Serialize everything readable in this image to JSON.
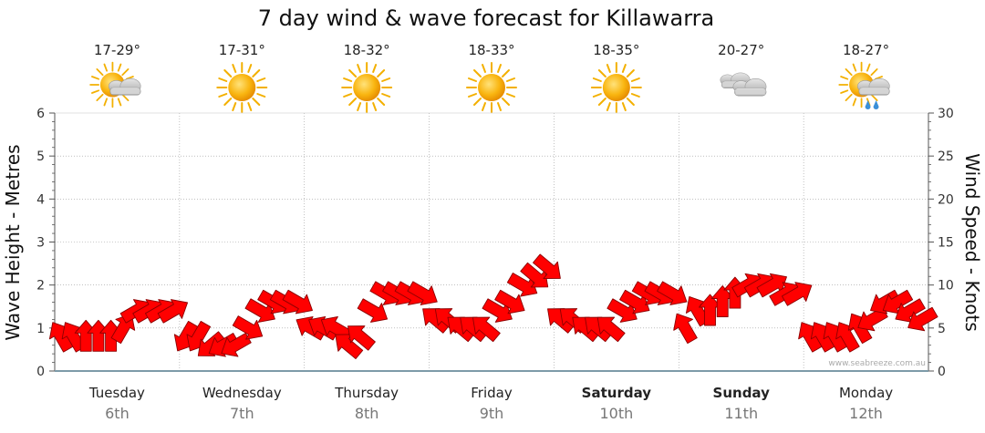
{
  "chart_data": {
    "type": "line",
    "title": "7 day wind & wave forecast for Killawarra",
    "ylabel_left": "Wave Height - Metres",
    "ylabel_right": "Wind Speed - Knots",
    "ylim_left": [
      0,
      6
    ],
    "ylim_right": [
      0,
      30
    ],
    "yticks_left": [
      "0",
      "1",
      "2",
      "3",
      "4",
      "5",
      "6"
    ],
    "yticks_right": [
      "0",
      "5",
      "10",
      "15",
      "20",
      "25",
      "30"
    ],
    "days": [
      {
        "name": "Tuesday",
        "date": "6th",
        "bold": false,
        "temp": "17-29°",
        "weather": "partly-cloudy-icon"
      },
      {
        "name": "Wednesday",
        "date": "7th",
        "bold": false,
        "temp": "17-31°",
        "weather": "sunny-icon"
      },
      {
        "name": "Thursday",
        "date": "8th",
        "bold": false,
        "temp": "18-32°",
        "weather": "sunny-icon"
      },
      {
        "name": "Friday",
        "date": "9th",
        "bold": false,
        "temp": "18-33°",
        "weather": "sunny-icon"
      },
      {
        "name": "Saturday",
        "date": "10th",
        "bold": true,
        "temp": "18-35°",
        "weather": "sunny-icon"
      },
      {
        "name": "Sunday",
        "date": "11th",
        "bold": true,
        "temp": "20-27°",
        "weather": "cloudy-icon"
      },
      {
        "name": "Monday",
        "date": "12th",
        "bold": false,
        "temp": "18-27°",
        "weather": "showers-icon"
      }
    ],
    "series": [
      {
        "name": "Wind Speed (knots)",
        "unit": "knots",
        "x_days": [
          0,
          0.1,
          0.2,
          0.3,
          0.4,
          0.5,
          0.6,
          0.7,
          0.8,
          0.9,
          1.0,
          1.1,
          1.2,
          1.3,
          1.4,
          1.5,
          1.6,
          1.7,
          1.8,
          1.9,
          2.0,
          2.1,
          2.2,
          2.3,
          2.4,
          2.5,
          2.6,
          2.7,
          2.8,
          2.9,
          3.0,
          3.1,
          3.2,
          3.3,
          3.4,
          3.5,
          3.6,
          3.7,
          3.8,
          3.9,
          4.0,
          4.1,
          4.2,
          4.3,
          4.4,
          4.5,
          4.6,
          4.7,
          4.8,
          4.9,
          5.0,
          5.1,
          5.2,
          5.3,
          5.4,
          5.5,
          5.6,
          5.7,
          5.8,
          5.9,
          6.0,
          6.1,
          6.2,
          6.3,
          6.4,
          6.5,
          6.6,
          6.7,
          6.8,
          6.9
        ],
        "values": [
          4,
          4,
          4,
          4,
          4,
          5,
          7,
          7,
          7,
          7,
          4,
          4,
          3,
          3,
          3,
          5,
          7,
          8,
          8,
          8,
          5,
          5,
          5,
          3,
          4,
          7,
          9,
          9,
          9,
          9,
          6,
          6,
          5,
          5,
          5,
          7,
          8,
          10,
          11,
          12,
          6,
          6,
          5,
          5,
          5,
          7,
          8,
          9,
          9,
          9,
          5,
          7,
          7,
          8,
          9,
          10,
          10,
          10,
          9,
          9,
          4,
          4,
          4,
          4,
          5,
          6,
          8,
          8,
          7,
          6
        ],
        "direction_deg": [
          60,
          60,
          90,
          90,
          90,
          120,
          150,
          150,
          150,
          150,
          300,
          300,
          320,
          330,
          330,
          210,
          210,
          210,
          210,
          210,
          30,
          30,
          30,
          40,
          40,
          210,
          210,
          210,
          210,
          210,
          40,
          40,
          40,
          40,
          40,
          210,
          210,
          210,
          220,
          220,
          40,
          40,
          40,
          40,
          40,
          210,
          210,
          210,
          210,
          210,
          60,
          60,
          90,
          90,
          90,
          150,
          150,
          150,
          150,
          150,
          60,
          60,
          60,
          60,
          60,
          330,
          330,
          330,
          330,
          330
        ]
      }
    ]
  },
  "credit": "www.seabreeze.com.au"
}
